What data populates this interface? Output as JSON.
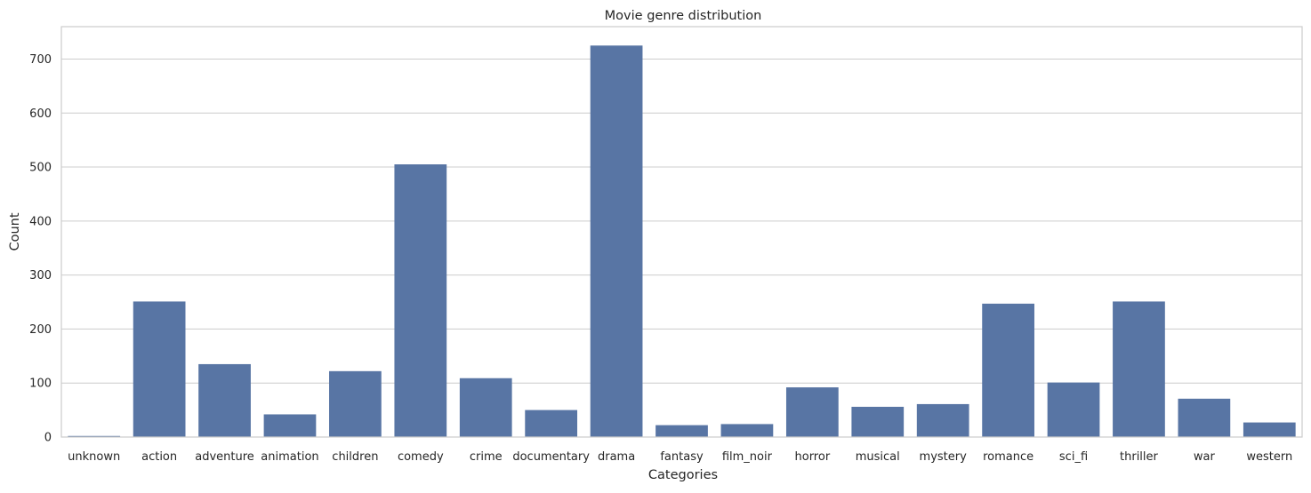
{
  "chart_data": {
    "type": "bar",
    "title": "Movie genre distribution",
    "xlabel": "Categories",
    "ylabel": "Count",
    "categories": [
      "unknown",
      "action",
      "adventure",
      "animation",
      "children",
      "comedy",
      "crime",
      "documentary",
      "drama",
      "fantasy",
      "film_noir",
      "horror",
      "musical",
      "mystery",
      "romance",
      "sci_fi",
      "thriller",
      "war",
      "western"
    ],
    "values": [
      2,
      251,
      135,
      42,
      122,
      505,
      109,
      50,
      725,
      22,
      24,
      92,
      56,
      61,
      247,
      101,
      251,
      71,
      27
    ],
    "ylim": [
      0,
      760
    ],
    "yticks": [
      0,
      100,
      200,
      300,
      400,
      500,
      600,
      700
    ],
    "grid": true,
    "bar_color": "#5875a4",
    "grid_color": "#cccccc"
  }
}
